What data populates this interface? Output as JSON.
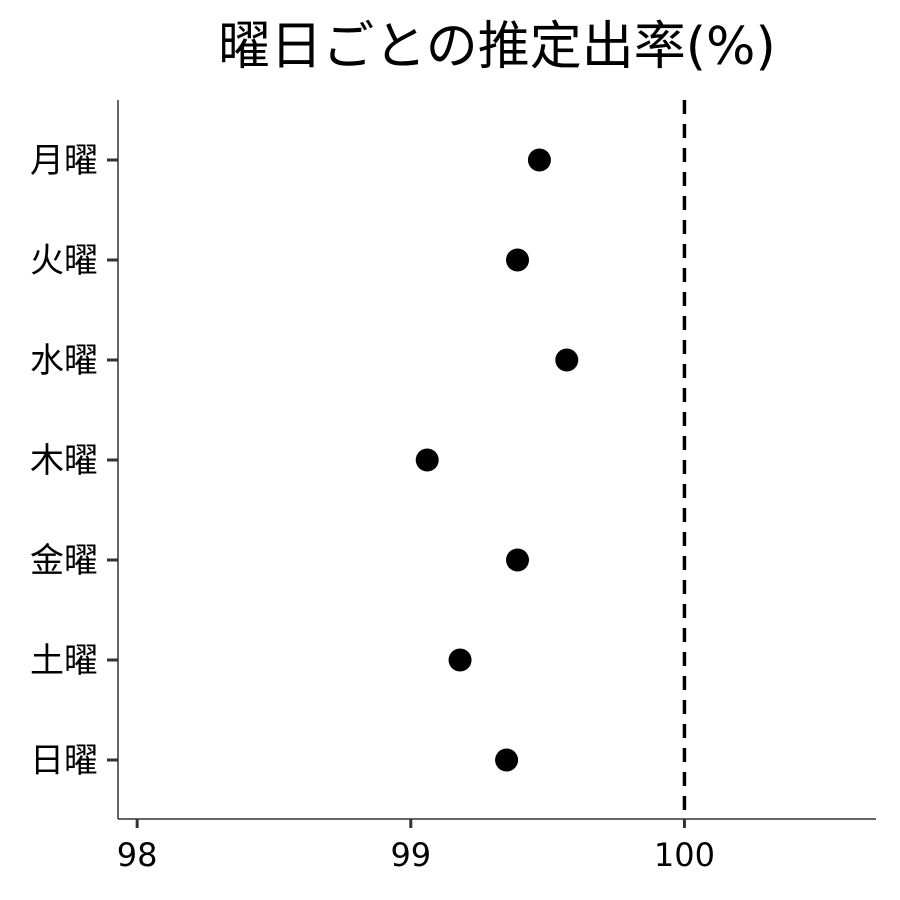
{
  "chart_data": {
    "type": "scatter",
    "title": "曜日ごとの推定出率(%)",
    "xlabel": "",
    "ylabel": "",
    "xlim": [
      97.93,
      100.7
    ],
    "xticks": [
      98,
      99,
      100
    ],
    "categories": [
      "月曜",
      "火曜",
      "水曜",
      "木曜",
      "金曜",
      "土曜",
      "日曜"
    ],
    "values": [
      99.47,
      99.39,
      99.57,
      99.06,
      99.39,
      99.18,
      99.35
    ],
    "reference_line": {
      "x": 100,
      "style": "dashed"
    },
    "grid": false,
    "marker_color": "#000000"
  }
}
